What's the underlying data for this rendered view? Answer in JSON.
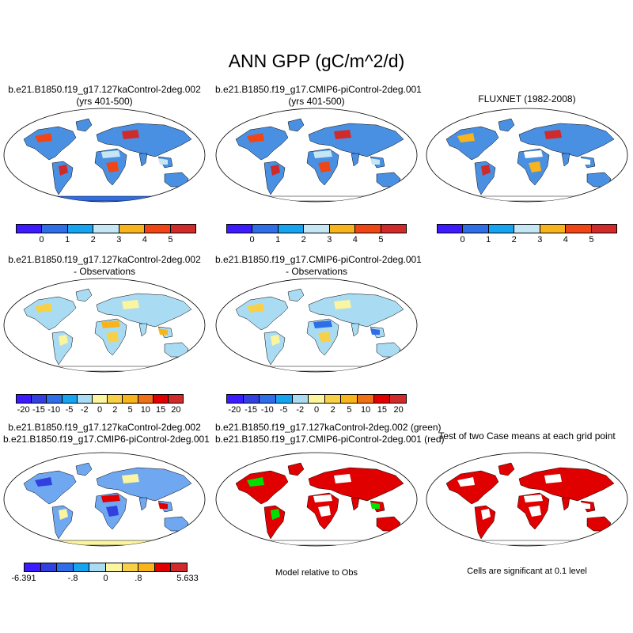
{
  "figure_title": "ANN GPP (gC/m^2/d)",
  "panels": {
    "p1": {
      "line1": "b.e21.B1850.f19_g17.127kaControl-2deg.002",
      "line2": "(yrs 401-500)"
    },
    "p2": {
      "line1": "b.e21.B1850.f19_g17.CMIP6-piControl-2deg.001",
      "line2": "(yrs 401-500)"
    },
    "p3": {
      "line1": "FLUXNET (1982-2008)"
    },
    "p4": {
      "line1": "b.e21.B1850.f19_g17.127kaControl-2deg.002",
      "line2": "- Observations"
    },
    "p5": {
      "line1": "b.e21.B1850.f19_g17.CMIP6-piControl-2deg.001",
      "line2": "- Observations"
    },
    "p6": {
      "line1": "b.e21.B1850.f19_g17.127kaControl-2deg.002",
      "line2": "b.e21.B1850.f19_g17.CMIP6-piControl-2deg.001"
    },
    "p7": {
      "line1": "b.e21.B1850.f19_g17.127kaControl-2deg.002 (green)",
      "line2": "b.e21.B1850.f19_g17.CMIP6-piControl-2deg.001 (red)"
    },
    "p8": {
      "line1": "Test of two Case means at each grid point"
    }
  },
  "notes": {
    "model_relative": "Model relative to Obs",
    "significance": "Cells are significant at 0.1 level"
  },
  "colorbars": {
    "gpp": {
      "colors": [
        "#3d1bff",
        "#2f6ee6",
        "#16a3f0",
        "#c5e6f5",
        "#f8b41c",
        "#f04616",
        "#d02a2a"
      ],
      "labels": [
        "0",
        "1",
        "2",
        "3",
        "4",
        "5"
      ]
    },
    "diff": {
      "colors": [
        "#3d1bff",
        "#3240e0",
        "#2f6ee6",
        "#16a3f0",
        "#a9dcf3",
        "#fbf5a0",
        "#f8d048",
        "#f8b41c",
        "#f07018",
        "#e00000",
        "#d02a2a"
      ],
      "labels": [
        "-20",
        "-15",
        "-10",
        "-5",
        "-2",
        "0",
        "2",
        "5",
        "10",
        "15",
        "20"
      ]
    },
    "case_diff": {
      "colors": [
        "#3d1bff",
        "#3240e0",
        "#2f6ee6",
        "#16a3f0",
        "#a9dcf3",
        "#fbf5a0",
        "#f8d048",
        "#f8b41c",
        "#e00000",
        "#d02a2a"
      ],
      "labels": [
        "-6.391",
        "-.8",
        "0",
        ".8",
        "5.633"
      ]
    }
  },
  "map_fills": {
    "p1": {
      "ocean": "#ffffff",
      "land": "#4a90e2",
      "accents": [
        "#d02a2a",
        "#f04616",
        "#c5e6f5"
      ],
      "antarctica": "#2f6ee6"
    },
    "p2": {
      "ocean": "#ffffff",
      "land": "#4a90e2",
      "accents": [
        "#d02a2a",
        "#f04616",
        "#c5e6f5"
      ],
      "antarctica": "#ffffff"
    },
    "p3": {
      "ocean": "#ffffff",
      "land": "#4a90e2",
      "accents": [
        "#d02a2a",
        "#f8b41c",
        "#ffffff"
      ],
      "antarctica": "#ffffff"
    },
    "p4": {
      "ocean": "#ffffff",
      "land": "#a9dcf3",
      "accents": [
        "#fbf5a0",
        "#f8d048",
        "#f8b41c"
      ],
      "antarctica": "#ffffff"
    },
    "p5": {
      "ocean": "#ffffff",
      "land": "#a9dcf3",
      "accents": [
        "#fbf5a0",
        "#f8d048",
        "#2f6ee6"
      ],
      "antarctica": "#ffffff"
    },
    "p6": {
      "ocean": "#ffffff",
      "land": "#6fa8f0",
      "accents": [
        "#fbf5a0",
        "#3240e0",
        "#e00000"
      ],
      "antarctica": "#fbf5a0"
    },
    "p7": {
      "ocean": "#ffffff",
      "land": "#e00000",
      "accents": [
        "#00e000",
        "#ffffff"
      ],
      "antarctica": "#ffffff"
    },
    "p8": {
      "ocean": "#ffffff",
      "land": "#e00000",
      "accents": [
        "#ffffff"
      ],
      "antarctica": "#ffffff"
    }
  }
}
